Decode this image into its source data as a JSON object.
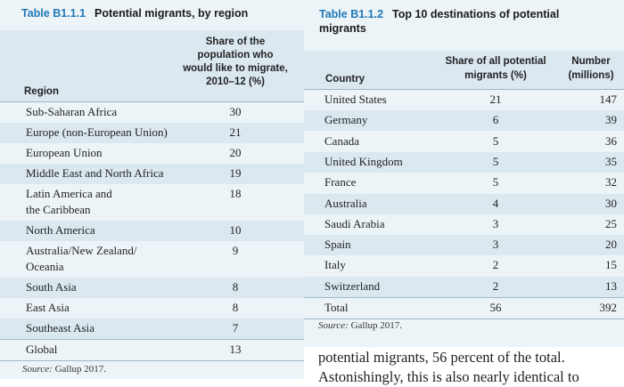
{
  "table1": {
    "number": "Table B1.1.1",
    "title": "Potential migrants, by region",
    "col_region": "Region",
    "col_share_lines": [
      "Share of the",
      "population who",
      "would like to migrate,",
      "2010–12 (%)"
    ],
    "rows": [
      {
        "name_lines": [
          "Sub-Saharan Africa"
        ],
        "value": "30"
      },
      {
        "name_lines": [
          "Europe (non-European Union)"
        ],
        "value": "21"
      },
      {
        "name_lines": [
          "European Union"
        ],
        "value": "20"
      },
      {
        "name_lines": [
          "Middle East and North Africa"
        ],
        "value": "19"
      },
      {
        "name_lines": [
          "Latin America and",
          "the Caribbean"
        ],
        "value": "18"
      },
      {
        "name_lines": [
          "North America"
        ],
        "value": "10"
      },
      {
        "name_lines": [
          "Australia/New Zealand/",
          "Oceania"
        ],
        "value": "9"
      },
      {
        "name_lines": [
          "South Asia"
        ],
        "value": "8"
      },
      {
        "name_lines": [
          "East Asia"
        ],
        "value": "8"
      },
      {
        "name_lines": [
          "Southeast Asia"
        ],
        "value": "7"
      },
      {
        "name_lines": [
          "Global"
        ],
        "value": "13"
      }
    ],
    "source_label": "Source:",
    "source_text": " Gallup 2017."
  },
  "table2": {
    "number": "Table B1.1.2",
    "title_line1": "Top 10 destinations of potential",
    "title_line2": "migrants",
    "col_country": "Country",
    "col_share_lines": [
      "Share of all potential",
      "migrants (%)"
    ],
    "col_number_lines": [
      "Number",
      "(millions)"
    ],
    "rows": [
      {
        "country": "United States",
        "share": "21",
        "number": "147"
      },
      {
        "country": "Germany",
        "share": "6",
        "number": "39"
      },
      {
        "country": "Canada",
        "share": "5",
        "number": "36"
      },
      {
        "country": "United Kingdom",
        "share": "5",
        "number": "35"
      },
      {
        "country": "France",
        "share": "5",
        "number": "32"
      },
      {
        "country": "Australia",
        "share": "4",
        "number": "30"
      },
      {
        "country": "Saudi Arabia",
        "share": "3",
        "number": "25"
      },
      {
        "country": "Spain",
        "share": "3",
        "number": "20"
      },
      {
        "country": "Italy",
        "share": "2",
        "number": "15"
      },
      {
        "country": "Switzerland",
        "share": "2",
        "number": "13"
      }
    ],
    "total": {
      "country": "Total",
      "share": "56",
      "number": "392"
    },
    "source_label": "Source:",
    "source_text": " Gallup 2017."
  },
  "body_text": {
    "line1": "potential migrants, 56 percent of the total.",
    "line2": "Astonishingly, this is also nearly identical to"
  },
  "colors": {
    "table_number": "#2178b5",
    "panel_bg": "#ecf4f8",
    "shade_bg": "#dbe8f0"
  }
}
